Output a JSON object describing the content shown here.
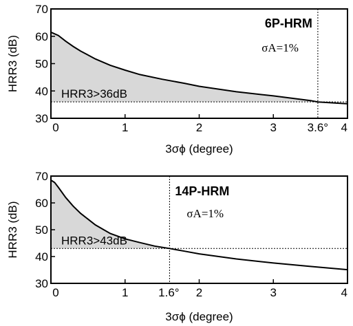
{
  "chart_data": [
    {
      "type": "area",
      "title": "6P-HRM",
      "subtitle": "σA=1%",
      "ylabel": "HRR3 (dB)",
      "xlabel": "3σϕ (degree)",
      "xlim": [
        0,
        4
      ],
      "ylim": [
        30,
        70
      ],
      "xticks": [
        "0",
        "1",
        "2",
        "3",
        "4"
      ],
      "yticks": [
        "30",
        "40",
        "50",
        "60",
        "70"
      ],
      "threshold_db": 36,
      "threshold_label": "HRR3>36dB",
      "crossing_deg": 3.6,
      "crossing_label": "3.6°",
      "series": [
        {
          "x": [
            0,
            0.1,
            0.2,
            0.3,
            0.4,
            0.6,
            0.8,
            1.0,
            1.2,
            1.5,
            1.8,
            2.0,
            2.5,
            3.0,
            3.5,
            3.6,
            4.0
          ],
          "y": [
            61.5,
            60.3,
            58.2,
            56.3,
            54.6,
            51.7,
            49.4,
            47.6,
            46.0,
            44.3,
            42.8,
            41.7,
            39.7,
            38.2,
            36.5,
            36.0,
            35.3
          ]
        }
      ],
      "grid": false
    },
    {
      "type": "area",
      "title": "14P-HRM",
      "subtitle": "σA=1%",
      "ylabel": "HRR3 (dB)",
      "xlabel": "3σϕ (degree)",
      "xlim": [
        0,
        4
      ],
      "ylim": [
        30,
        70
      ],
      "xticks": [
        "0",
        "1",
        "2",
        "3",
        "4"
      ],
      "yticks": [
        "30",
        "40",
        "50",
        "60",
        "70"
      ],
      "threshold_db": 43,
      "threshold_label": "HRR3>43dB",
      "crossing_deg": 1.6,
      "crossing_label": "1.6°",
      "series": [
        {
          "x": [
            0,
            0.05,
            0.1,
            0.2,
            0.3,
            0.4,
            0.6,
            0.8,
            1.0,
            1.2,
            1.4,
            1.6,
            1.8,
            2.0,
            2.5,
            3.0,
            3.5,
            4.0
          ],
          "y": [
            68.5,
            67.6,
            65.8,
            62.0,
            58.8,
            56.1,
            51.8,
            48.6,
            46.6,
            45.2,
            43.9,
            43.0,
            42.0,
            41.0,
            39.1,
            37.6,
            36.3,
            35.1
          ]
        }
      ],
      "grid": false
    }
  ]
}
